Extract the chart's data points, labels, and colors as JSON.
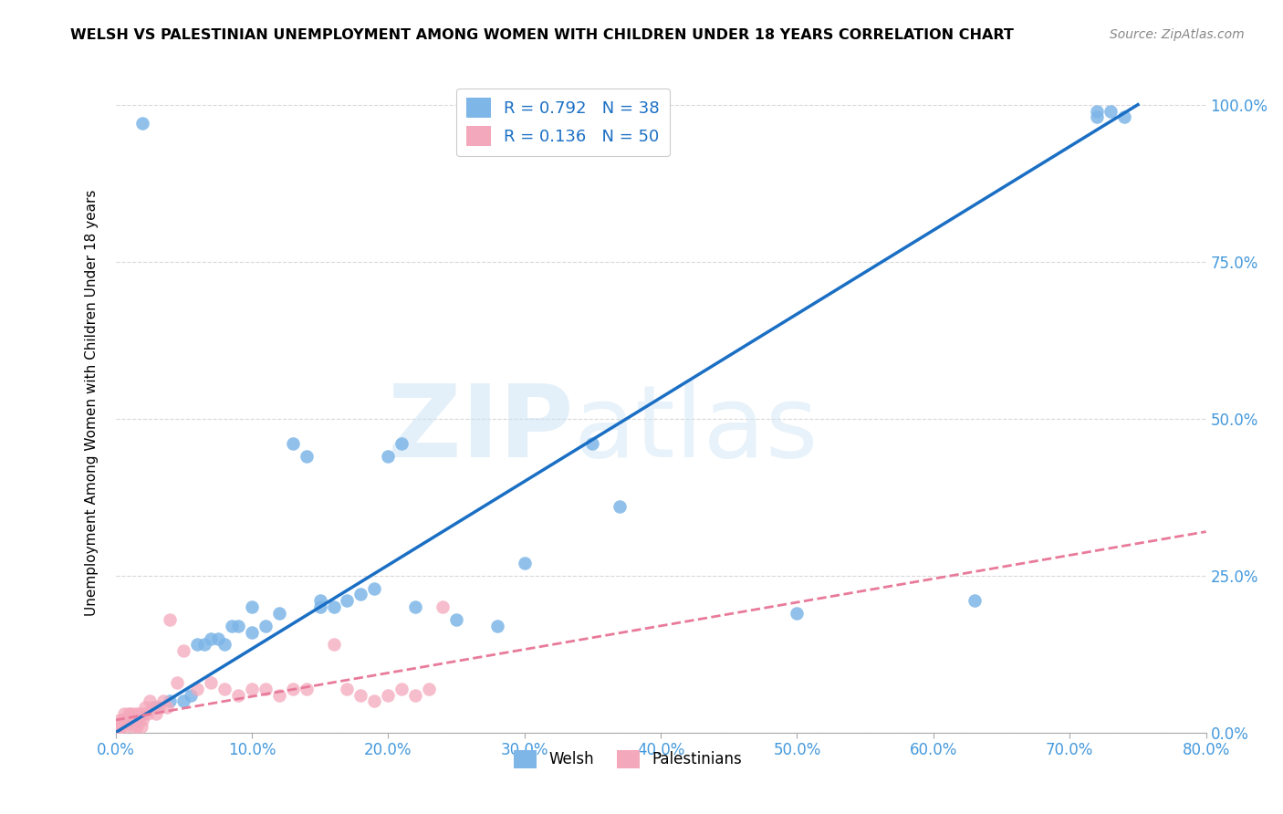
{
  "title": "WELSH VS PALESTINIAN UNEMPLOYMENT AMONG WOMEN WITH CHILDREN UNDER 18 YEARS CORRELATION CHART",
  "source": "Source: ZipAtlas.com",
  "ylabel": "Unemployment Among Women with Children Under 18 years",
  "xlabel_ticks": [
    "0.0%",
    "10.0%",
    "20.0%",
    "30.0%",
    "40.0%",
    "50.0%",
    "60.0%",
    "70.0%",
    "80.0%"
  ],
  "xlabel_vals": [
    0.0,
    0.1,
    0.2,
    0.3,
    0.4,
    0.5,
    0.6,
    0.7,
    0.8
  ],
  "ylabel_ticks": [
    "0.0%",
    "25.0%",
    "50.0%",
    "75.0%",
    "100.0%"
  ],
  "ylabel_vals": [
    0.0,
    0.25,
    0.5,
    0.75,
    1.0
  ],
  "xlim": [
    0.0,
    0.8
  ],
  "ylim": [
    0.0,
    1.05
  ],
  "welsh_R": 0.792,
  "welsh_N": 38,
  "palestinian_R": 0.136,
  "palestinian_N": 50,
  "welsh_color": "#7eb6e8",
  "palestinian_color": "#f4a8bb",
  "welsh_line_color": "#1a6fc4",
  "palestinian_line_color": "#e87a9a",
  "legend_label_welsh": "Welsh",
  "legend_label_palestinian": "Palestinians",
  "welsh_line_x": [
    0.0,
    0.75
  ],
  "welsh_line_y": [
    0.0,
    1.0
  ],
  "pal_line_x": [
    0.0,
    0.8
  ],
  "pal_line_y": [
    0.02,
    0.32
  ],
  "welsh_x": [
    0.02,
    0.03,
    0.04,
    0.05,
    0.055,
    0.06,
    0.065,
    0.07,
    0.075,
    0.08,
    0.085,
    0.09,
    0.1,
    0.1,
    0.11,
    0.12,
    0.13,
    0.14,
    0.15,
    0.15,
    0.16,
    0.17,
    0.18,
    0.19,
    0.2,
    0.21,
    0.22,
    0.25,
    0.28,
    0.3,
    0.35,
    0.37,
    0.5,
    0.63,
    0.72,
    0.73,
    0.74,
    0.72
  ],
  "welsh_y": [
    0.97,
    0.04,
    0.05,
    0.05,
    0.06,
    0.14,
    0.14,
    0.15,
    0.15,
    0.14,
    0.17,
    0.17,
    0.16,
    0.2,
    0.17,
    0.19,
    0.46,
    0.44,
    0.2,
    0.21,
    0.2,
    0.21,
    0.22,
    0.23,
    0.44,
    0.46,
    0.2,
    0.18,
    0.17,
    0.27,
    0.46,
    0.36,
    0.19,
    0.21,
    0.98,
    0.99,
    0.98,
    0.99
  ],
  "palestinian_x": [
    0.0,
    0.002,
    0.003,
    0.004,
    0.005,
    0.006,
    0.007,
    0.008,
    0.009,
    0.01,
    0.011,
    0.012,
    0.013,
    0.014,
    0.015,
    0.016,
    0.017,
    0.018,
    0.019,
    0.02,
    0.021,
    0.022,
    0.024,
    0.025,
    0.027,
    0.03,
    0.032,
    0.035,
    0.038,
    0.04,
    0.045,
    0.05,
    0.06,
    0.07,
    0.08,
    0.09,
    0.1,
    0.11,
    0.12,
    0.13,
    0.14,
    0.16,
    0.17,
    0.18,
    0.19,
    0.2,
    0.21,
    0.22,
    0.23,
    0.24
  ],
  "palestinian_y": [
    0.0,
    0.01,
    0.02,
    0.01,
    0.02,
    0.03,
    0.02,
    0.01,
    0.02,
    0.03,
    0.02,
    0.03,
    0.01,
    0.02,
    0.03,
    0.01,
    0.02,
    0.03,
    0.01,
    0.02,
    0.03,
    0.04,
    0.03,
    0.05,
    0.04,
    0.03,
    0.04,
    0.05,
    0.04,
    0.18,
    0.08,
    0.13,
    0.07,
    0.08,
    0.07,
    0.06,
    0.07,
    0.07,
    0.06,
    0.07,
    0.07,
    0.14,
    0.07,
    0.06,
    0.05,
    0.06,
    0.07,
    0.06,
    0.07,
    0.2
  ],
  "background_color": "#ffffff",
  "grid_color": "#d8d8d8"
}
